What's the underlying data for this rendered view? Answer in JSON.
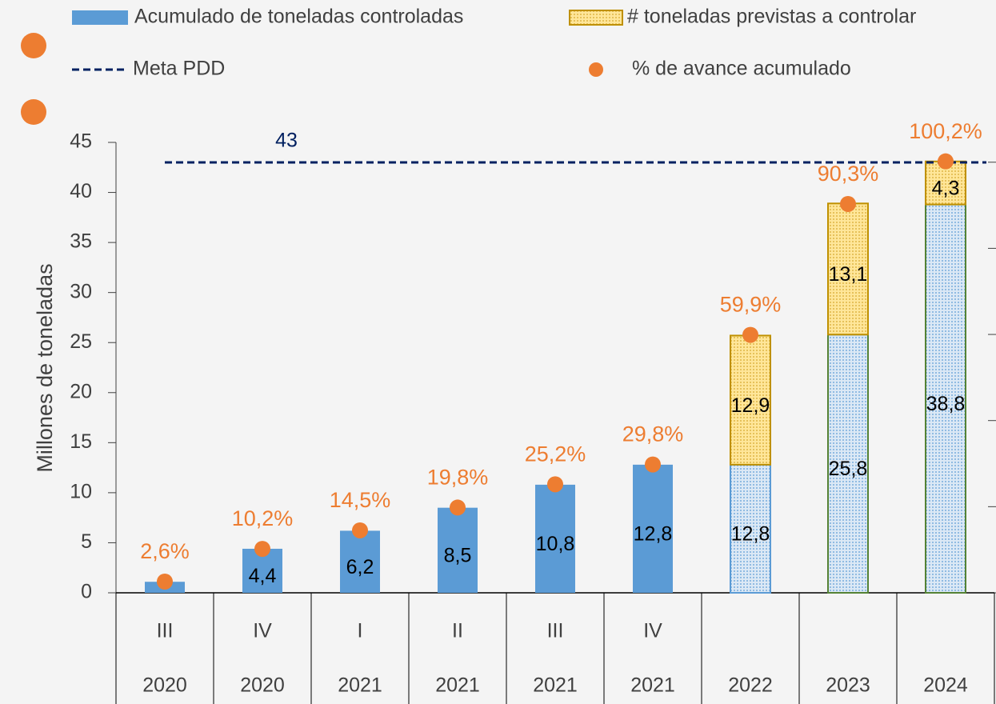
{
  "chart_data": {
    "type": "bar",
    "y_label": "Millones de toneladas",
    "categories": [
      "III",
      "IV",
      "I",
      "II",
      "III",
      "IV",
      null,
      null,
      null
    ],
    "category_groups": [
      "2020",
      "2020",
      "2021",
      "2021",
      "2021",
      "2021",
      "2022",
      "2023",
      "2024"
    ],
    "ylim": [
      0,
      45
    ],
    "yticks": [
      0,
      5,
      10,
      15,
      20,
      25,
      30,
      35,
      40,
      45
    ],
    "y2lim": [
      0,
      104.6
    ],
    "y2ticks": [
      0,
      20,
      40,
      60,
      80,
      100
    ],
    "stacked": true,
    "series": [
      {
        "name": "Acumulado de toneladas controladas",
        "type": "bar",
        "color": "#5b9bd5",
        "values": [
          1.1,
          4.4,
          6.2,
          8.5,
          10.8,
          12.8,
          12.8,
          25.8,
          38.8
        ],
        "value_labels": [
          null,
          "4,4",
          "6,2",
          "8,5",
          "10,8",
          "12,8",
          "12,8",
          "25,8",
          "38,8"
        ],
        "hatched": [
          false,
          false,
          false,
          false,
          false,
          false,
          true,
          true,
          true
        ],
        "edge_colors": [
          "#5b9bd5",
          "#5b9bd5",
          "#5b9bd5",
          "#5b9bd5",
          "#5b9bd5",
          "#5b9bd5",
          "#5b9bd5",
          "#548235",
          "#548235"
        ]
      },
      {
        "name": "# toneladas previstas a controlar",
        "type": "bar",
        "color": "#ffd966",
        "values": [
          null,
          null,
          null,
          null,
          null,
          null,
          12.9,
          13.1,
          4.3
        ],
        "value_labels": [
          null,
          null,
          null,
          null,
          null,
          null,
          "12,9",
          "13,1",
          "4,3"
        ],
        "hatched": [
          true,
          true,
          true,
          true,
          true,
          true,
          true,
          true,
          true
        ],
        "edge_colors": [
          "#bf9000",
          "#bf9000",
          "#bf9000",
          "#bf9000",
          "#bf9000",
          "#bf9000",
          "#bf9000",
          "#bf9000",
          "#bf9000"
        ]
      },
      {
        "name": "% de avance acumulado",
        "type": "scatter",
        "axis": "y2",
        "color": "#ed7d31",
        "values": [
          2.6,
          10.2,
          14.5,
          19.8,
          25.2,
          29.8,
          59.9,
          90.3,
          100.2
        ],
        "value_labels": [
          "2,6%",
          "10,2%",
          "14,5%",
          "19,8%",
          "25,2%",
          "29,8%",
          "59,9%",
          "90,3%",
          "100,2%"
        ]
      }
    ],
    "target": {
      "name": "Meta PDD",
      "value": 43,
      "color": "#002060"
    }
  }
}
